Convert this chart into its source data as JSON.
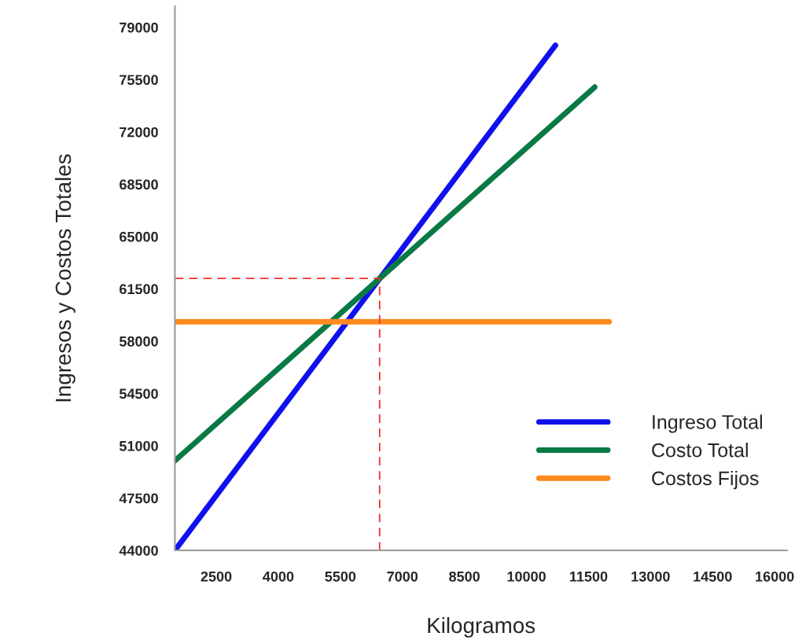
{
  "chart_data": {
    "type": "line",
    "xlabel": "Kilogramos",
    "ylabel": "Ingresos y Costos Totales",
    "xlim": [
      1500,
      16300
    ],
    "xticks": [
      2500,
      4000,
      5500,
      7000,
      8500,
      10000,
      11500,
      13000,
      14500,
      16000
    ],
    "ylim": [
      44000,
      80400
    ],
    "yticks": [
      44000,
      47500,
      51000,
      54500,
      58000,
      61500,
      65000,
      68500,
      72000,
      75500,
      79000
    ],
    "grid": false,
    "legend": "bottom right",
    "marker": "none",
    "series": [
      {
        "name": "Ingreso Total",
        "color": "#1010ee",
        "x": [
          1500,
          10700
        ],
        "values": [
          44000,
          77800
        ],
        "line_style": "solid"
      },
      {
        "name": "Costo Total",
        "color": "#0a7a45",
        "x": [
          1500,
          11650
        ],
        "values": [
          50000,
          75000
        ],
        "line_style": "solid"
      },
      {
        "name": "Costos Fijos",
        "color": "#ff8a1e",
        "x": [
          1500,
          12000
        ],
        "values": [
          59300,
          59300
        ],
        "line_style": "solid"
      },
      {
        "color": "#f03030",
        "x": [
          1500,
          6450,
          6450
        ],
        "values": [
          62200,
          62200,
          44000
        ],
        "line_style": "dashed"
      }
    ]
  }
}
